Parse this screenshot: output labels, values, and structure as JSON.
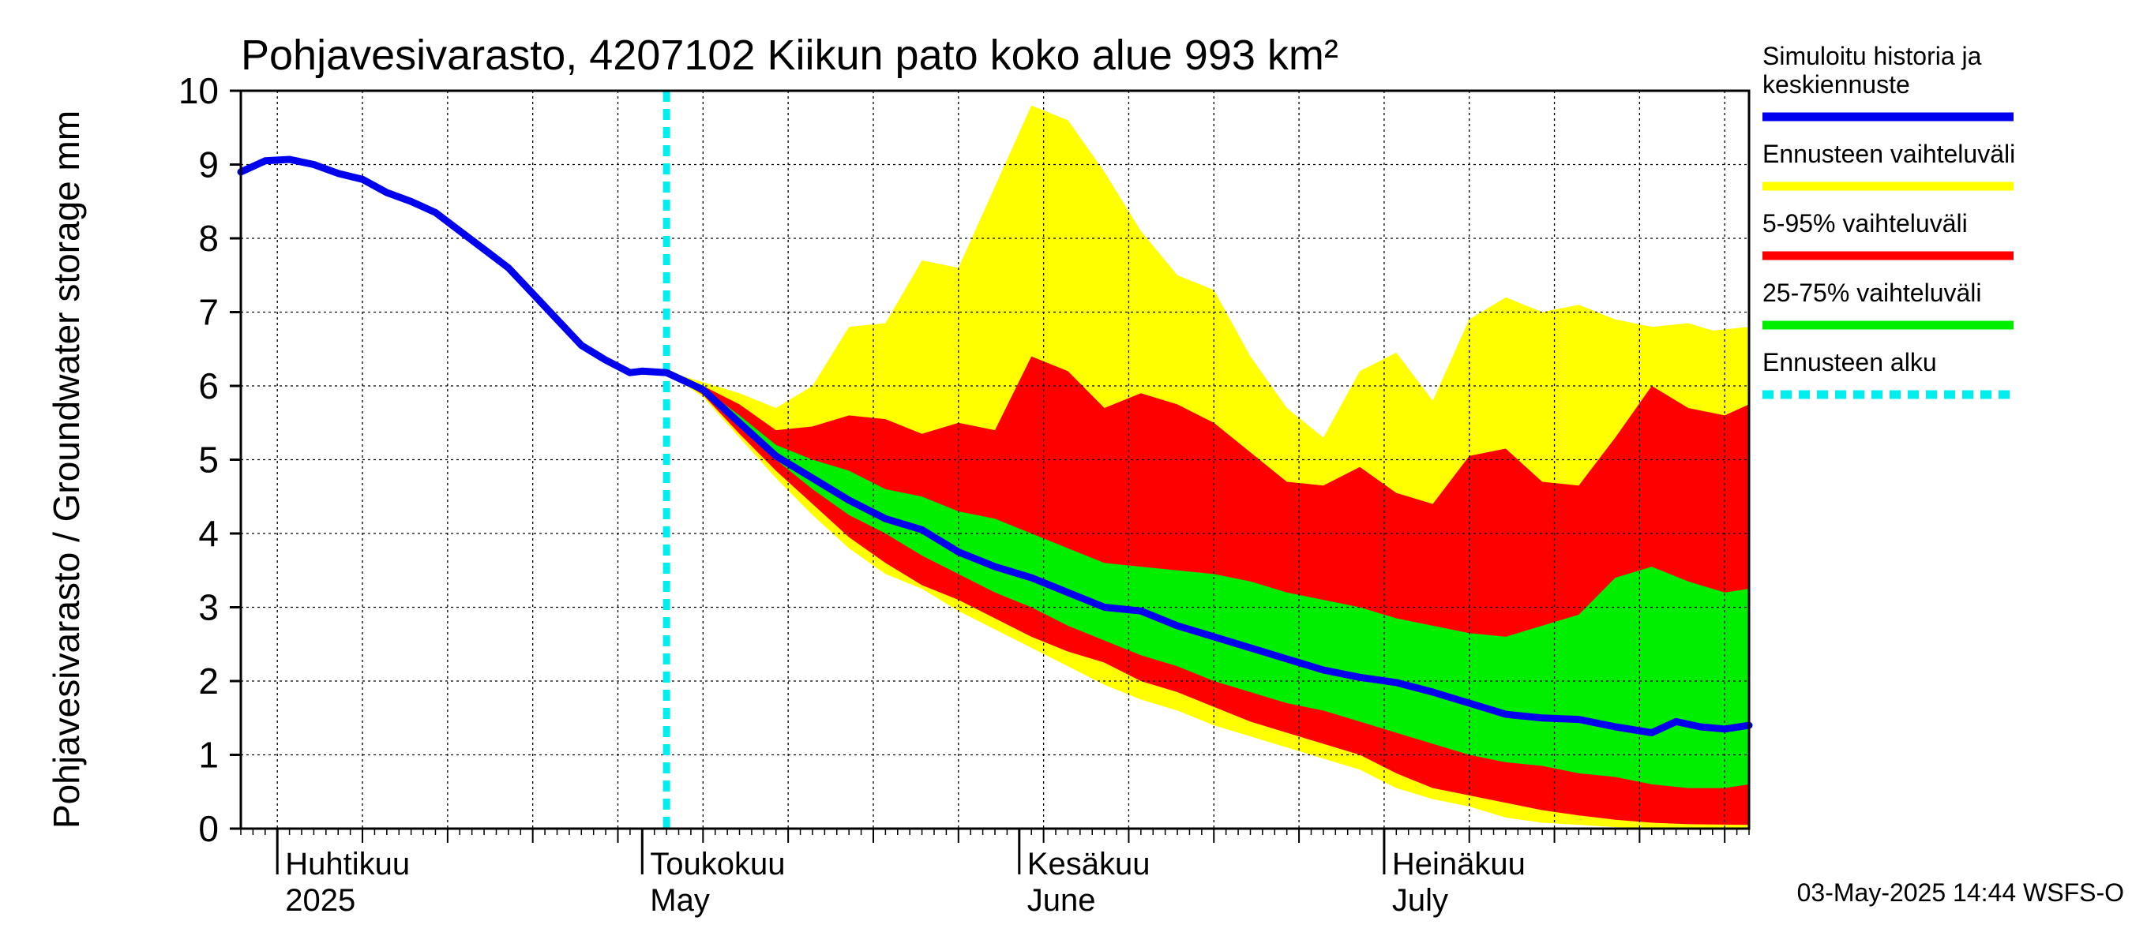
{
  "chart_data": {
    "type": "area",
    "title": "Pohjavesivarasto, 4207102 Kiikun pato koko alue 993 km²",
    "ylabel": "Pohjavesivarasto / Groundwater storage   mm",
    "ylim": [
      0,
      10
    ],
    "yticks": [
      "0",
      "1",
      "2",
      "3",
      "4",
      "5",
      "6",
      "7",
      "8",
      "9",
      "10"
    ],
    "xlim": [
      "2025-03-29",
      "2025-07-31"
    ],
    "x_month_labels": [
      {
        "date": "2025-04-01",
        "fi": "Huhtikuu",
        "en": "2025"
      },
      {
        "date": "2025-05-01",
        "fi": "Toukokuu",
        "en": "May"
      },
      {
        "date": "2025-06-01",
        "fi": "Kesäkuu",
        "en": "June"
      },
      {
        "date": "2025-07-01",
        "fi": "Heinäkuu",
        "en": "July"
      }
    ],
    "grid": true,
    "forecast_start": "2025-05-03",
    "legend_position": "right",
    "legend": [
      {
        "label": "Simuloitu historia ja keskiennuste",
        "color": "#0000ee",
        "style": "solid"
      },
      {
        "label": "Ennusteen vaihteluväli",
        "color": "#ffff00",
        "style": "solid"
      },
      {
        "label": "5-95% vaihteluväli",
        "color": "#ff0000",
        "style": "solid"
      },
      {
        "label": "25-75% vaihteluväli",
        "color": "#00ee00",
        "style": "solid"
      },
      {
        "label": "Ennusteen alku",
        "color": "#00eeee",
        "style": "dashed"
      }
    ],
    "series": [
      {
        "name": "Simuloitu historia ja keskiennuste",
        "points": [
          [
            "2025-03-29",
            8.9
          ],
          [
            "2025-03-31",
            9.05
          ],
          [
            "2025-04-02",
            9.07
          ],
          [
            "2025-04-04",
            9.0
          ],
          [
            "2025-04-06",
            8.88
          ],
          [
            "2025-04-08",
            8.8
          ],
          [
            "2025-04-10",
            8.62
          ],
          [
            "2025-04-12",
            8.5
          ],
          [
            "2025-04-14",
            8.35
          ],
          [
            "2025-04-16",
            8.1
          ],
          [
            "2025-04-18",
            7.85
          ],
          [
            "2025-04-20",
            7.6
          ],
          [
            "2025-04-22",
            7.25
          ],
          [
            "2025-04-24",
            6.9
          ],
          [
            "2025-04-26",
            6.55
          ],
          [
            "2025-04-28",
            6.35
          ],
          [
            "2025-04-30",
            6.18
          ],
          [
            "2025-05-01",
            6.2
          ],
          [
            "2025-05-03",
            6.18
          ],
          [
            "2025-05-06",
            5.95
          ],
          [
            "2025-05-09",
            5.5
          ],
          [
            "2025-05-12",
            5.05
          ],
          [
            "2025-05-15",
            4.75
          ],
          [
            "2025-05-18",
            4.45
          ],
          [
            "2025-05-21",
            4.2
          ],
          [
            "2025-05-24",
            4.05
          ],
          [
            "2025-05-27",
            3.75
          ],
          [
            "2025-05-30",
            3.55
          ],
          [
            "2025-06-02",
            3.4
          ],
          [
            "2025-06-05",
            3.2
          ],
          [
            "2025-06-08",
            3.0
          ],
          [
            "2025-06-11",
            2.95
          ],
          [
            "2025-06-14",
            2.75
          ],
          [
            "2025-06-17",
            2.6
          ],
          [
            "2025-06-20",
            2.45
          ],
          [
            "2025-06-23",
            2.3
          ],
          [
            "2025-06-26",
            2.15
          ],
          [
            "2025-06-29",
            2.05
          ],
          [
            "2025-07-02",
            1.98
          ],
          [
            "2025-07-05",
            1.85
          ],
          [
            "2025-07-08",
            1.7
          ],
          [
            "2025-07-11",
            1.55
          ],
          [
            "2025-07-14",
            1.5
          ],
          [
            "2025-07-17",
            1.48
          ],
          [
            "2025-07-20",
            1.38
          ],
          [
            "2025-07-23",
            1.3
          ],
          [
            "2025-07-25",
            1.45
          ],
          [
            "2025-07-27",
            1.38
          ],
          [
            "2025-07-29",
            1.35
          ],
          [
            "2025-07-31",
            1.4
          ]
        ]
      },
      {
        "name": "Ennusteen vaihteluväli",
        "upper": [
          [
            "2025-05-03",
            6.2
          ],
          [
            "2025-05-06",
            6.05
          ],
          [
            "2025-05-09",
            5.9
          ],
          [
            "2025-05-12",
            5.7
          ],
          [
            "2025-05-15",
            6.0
          ],
          [
            "2025-05-18",
            6.8
          ],
          [
            "2025-05-21",
            6.85
          ],
          [
            "2025-05-24",
            7.7
          ],
          [
            "2025-05-27",
            7.6
          ],
          [
            "2025-05-30",
            8.7
          ],
          [
            "2025-06-02",
            9.8
          ],
          [
            "2025-06-05",
            9.6
          ],
          [
            "2025-06-08",
            8.9
          ],
          [
            "2025-06-11",
            8.1
          ],
          [
            "2025-06-14",
            7.5
          ],
          [
            "2025-06-17",
            7.3
          ],
          [
            "2025-06-20",
            6.4
          ],
          [
            "2025-06-23",
            5.7
          ],
          [
            "2025-06-26",
            5.3
          ],
          [
            "2025-06-29",
            6.2
          ],
          [
            "2025-07-02",
            6.45
          ],
          [
            "2025-07-05",
            5.8
          ],
          [
            "2025-07-08",
            6.9
          ],
          [
            "2025-07-11",
            7.2
          ],
          [
            "2025-07-14",
            7.0
          ],
          [
            "2025-07-17",
            7.1
          ],
          [
            "2025-07-20",
            6.9
          ],
          [
            "2025-07-23",
            6.8
          ],
          [
            "2025-07-26",
            6.85
          ],
          [
            "2025-07-28",
            6.75
          ],
          [
            "2025-07-31",
            6.8
          ]
        ],
        "lower": [
          [
            "2025-05-03",
            6.18
          ],
          [
            "2025-05-06",
            5.85
          ],
          [
            "2025-05-09",
            5.3
          ],
          [
            "2025-05-12",
            4.75
          ],
          [
            "2025-05-15",
            4.25
          ],
          [
            "2025-05-18",
            3.8
          ],
          [
            "2025-05-21",
            3.45
          ],
          [
            "2025-05-24",
            3.25
          ],
          [
            "2025-05-27",
            2.95
          ],
          [
            "2025-05-30",
            2.7
          ],
          [
            "2025-06-02",
            2.45
          ],
          [
            "2025-06-05",
            2.2
          ],
          [
            "2025-06-08",
            1.95
          ],
          [
            "2025-06-11",
            1.75
          ],
          [
            "2025-06-14",
            1.6
          ],
          [
            "2025-06-17",
            1.4
          ],
          [
            "2025-06-20",
            1.25
          ],
          [
            "2025-06-23",
            1.1
          ],
          [
            "2025-06-26",
            0.95
          ],
          [
            "2025-06-29",
            0.8
          ],
          [
            "2025-07-02",
            0.55
          ],
          [
            "2025-07-05",
            0.4
          ],
          [
            "2025-07-08",
            0.3
          ],
          [
            "2025-07-11",
            0.15
          ],
          [
            "2025-07-14",
            0.08
          ],
          [
            "2025-07-17",
            0.05
          ],
          [
            "2025-07-20",
            0.02
          ],
          [
            "2025-07-23",
            0.01
          ],
          [
            "2025-07-26",
            0.0
          ],
          [
            "2025-07-31",
            0.0
          ]
        ]
      },
      {
        "name": "5-95% vaihteluväli",
        "upper": [
          [
            "2025-05-03",
            6.2
          ],
          [
            "2025-05-06",
            6.0
          ],
          [
            "2025-05-09",
            5.75
          ],
          [
            "2025-05-12",
            5.4
          ],
          [
            "2025-05-15",
            5.45
          ],
          [
            "2025-05-18",
            5.6
          ],
          [
            "2025-05-21",
            5.55
          ],
          [
            "2025-05-24",
            5.35
          ],
          [
            "2025-05-27",
            5.5
          ],
          [
            "2025-05-30",
            5.4
          ],
          [
            "2025-06-02",
            6.4
          ],
          [
            "2025-06-05",
            6.2
          ],
          [
            "2025-06-08",
            5.7
          ],
          [
            "2025-06-11",
            5.9
          ],
          [
            "2025-06-14",
            5.75
          ],
          [
            "2025-06-17",
            5.5
          ],
          [
            "2025-06-20",
            5.1
          ],
          [
            "2025-06-23",
            4.7
          ],
          [
            "2025-06-26",
            4.65
          ],
          [
            "2025-06-29",
            4.9
          ],
          [
            "2025-07-02",
            4.55
          ],
          [
            "2025-07-05",
            4.4
          ],
          [
            "2025-07-08",
            5.05
          ],
          [
            "2025-07-11",
            5.15
          ],
          [
            "2025-07-14",
            4.7
          ],
          [
            "2025-07-17",
            4.65
          ],
          [
            "2025-07-20",
            5.3
          ],
          [
            "2025-07-23",
            6.0
          ],
          [
            "2025-07-26",
            5.7
          ],
          [
            "2025-07-29",
            5.6
          ],
          [
            "2025-07-31",
            5.75
          ]
        ],
        "lower": [
          [
            "2025-05-03",
            6.18
          ],
          [
            "2025-05-06",
            5.88
          ],
          [
            "2025-05-09",
            5.35
          ],
          [
            "2025-05-12",
            4.85
          ],
          [
            "2025-05-15",
            4.4
          ],
          [
            "2025-05-18",
            3.95
          ],
          [
            "2025-05-21",
            3.6
          ],
          [
            "2025-05-24",
            3.3
          ],
          [
            "2025-05-27",
            3.1
          ],
          [
            "2025-05-30",
            2.85
          ],
          [
            "2025-06-02",
            2.6
          ],
          [
            "2025-06-05",
            2.4
          ],
          [
            "2025-06-08",
            2.25
          ],
          [
            "2025-06-11",
            2.0
          ],
          [
            "2025-06-14",
            1.85
          ],
          [
            "2025-06-17",
            1.65
          ],
          [
            "2025-06-20",
            1.45
          ],
          [
            "2025-06-23",
            1.3
          ],
          [
            "2025-06-26",
            1.15
          ],
          [
            "2025-06-29",
            1.0
          ],
          [
            "2025-07-02",
            0.75
          ],
          [
            "2025-07-05",
            0.55
          ],
          [
            "2025-07-08",
            0.45
          ],
          [
            "2025-07-11",
            0.35
          ],
          [
            "2025-07-14",
            0.25
          ],
          [
            "2025-07-17",
            0.18
          ],
          [
            "2025-07-20",
            0.12
          ],
          [
            "2025-07-23",
            0.08
          ],
          [
            "2025-07-26",
            0.06
          ],
          [
            "2025-07-31",
            0.05
          ]
        ]
      },
      {
        "name": "25-75% vaihteluväli",
        "upper": [
          [
            "2025-05-03",
            6.19
          ],
          [
            "2025-05-06",
            5.97
          ],
          [
            "2025-05-09",
            5.6
          ],
          [
            "2025-05-12",
            5.2
          ],
          [
            "2025-05-15",
            5.0
          ],
          [
            "2025-05-18",
            4.85
          ],
          [
            "2025-05-21",
            4.6
          ],
          [
            "2025-05-24",
            4.5
          ],
          [
            "2025-05-27",
            4.3
          ],
          [
            "2025-05-30",
            4.2
          ],
          [
            "2025-06-02",
            4.0
          ],
          [
            "2025-06-05",
            3.8
          ],
          [
            "2025-06-08",
            3.6
          ],
          [
            "2025-06-11",
            3.55
          ],
          [
            "2025-06-14",
            3.5
          ],
          [
            "2025-06-17",
            3.45
          ],
          [
            "2025-06-20",
            3.35
          ],
          [
            "2025-06-23",
            3.2
          ],
          [
            "2025-06-26",
            3.1
          ],
          [
            "2025-06-29",
            3.0
          ],
          [
            "2025-07-02",
            2.85
          ],
          [
            "2025-07-05",
            2.75
          ],
          [
            "2025-07-08",
            2.65
          ],
          [
            "2025-07-11",
            2.6
          ],
          [
            "2025-07-14",
            2.75
          ],
          [
            "2025-07-17",
            2.9
          ],
          [
            "2025-07-20",
            3.4
          ],
          [
            "2025-07-23",
            3.55
          ],
          [
            "2025-07-26",
            3.35
          ],
          [
            "2025-07-29",
            3.2
          ],
          [
            "2025-07-31",
            3.25
          ]
        ],
        "lower": [
          [
            "2025-05-03",
            6.18
          ],
          [
            "2025-05-06",
            5.9
          ],
          [
            "2025-05-09",
            5.45
          ],
          [
            "2025-05-12",
            5.0
          ],
          [
            "2025-05-15",
            4.6
          ],
          [
            "2025-05-18",
            4.25
          ],
          [
            "2025-05-21",
            4.0
          ],
          [
            "2025-05-24",
            3.7
          ],
          [
            "2025-05-27",
            3.45
          ],
          [
            "2025-05-30",
            3.2
          ],
          [
            "2025-06-02",
            3.0
          ],
          [
            "2025-06-05",
            2.75
          ],
          [
            "2025-06-08",
            2.55
          ],
          [
            "2025-06-11",
            2.35
          ],
          [
            "2025-06-14",
            2.2
          ],
          [
            "2025-06-17",
            2.0
          ],
          [
            "2025-06-20",
            1.85
          ],
          [
            "2025-06-23",
            1.7
          ],
          [
            "2025-06-26",
            1.6
          ],
          [
            "2025-06-29",
            1.45
          ],
          [
            "2025-07-02",
            1.3
          ],
          [
            "2025-07-05",
            1.15
          ],
          [
            "2025-07-08",
            1.0
          ],
          [
            "2025-07-11",
            0.9
          ],
          [
            "2025-07-14",
            0.85
          ],
          [
            "2025-07-17",
            0.75
          ],
          [
            "2025-07-20",
            0.7
          ],
          [
            "2025-07-23",
            0.6
          ],
          [
            "2025-07-26",
            0.55
          ],
          [
            "2025-07-29",
            0.55
          ],
          [
            "2025-07-31",
            0.6
          ]
        ]
      }
    ],
    "footer": "03-May-2025 14:44 WSFS-O"
  }
}
